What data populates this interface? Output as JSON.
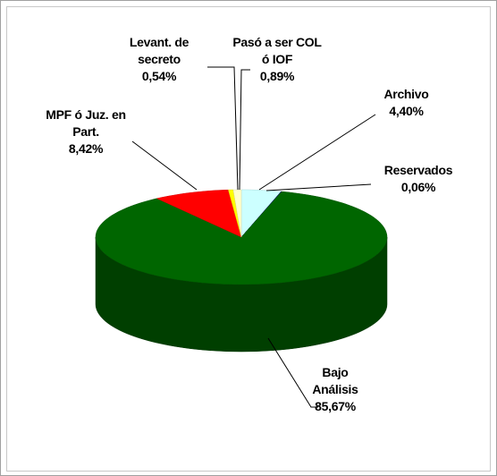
{
  "chart_data": {
    "type": "pie3d",
    "categories": [
      "Archivo",
      "Reservados",
      "Bajo Análisis",
      "MPF ó Juz. en Part.",
      "Levant. de secreto",
      "Pasó a ser COL ó IOF"
    ],
    "values": [
      4.4,
      0.06,
      85.67,
      8.42,
      0.54,
      0.89
    ],
    "value_labels": [
      "4,40%",
      "0,06%",
      "85,67%",
      "8,42%",
      "0,54%",
      "0,89%"
    ],
    "colors": [
      "#ccffff",
      "#000080",
      "#006600",
      "#ff0000",
      "#ffff00",
      "#ffffcc"
    ]
  }
}
